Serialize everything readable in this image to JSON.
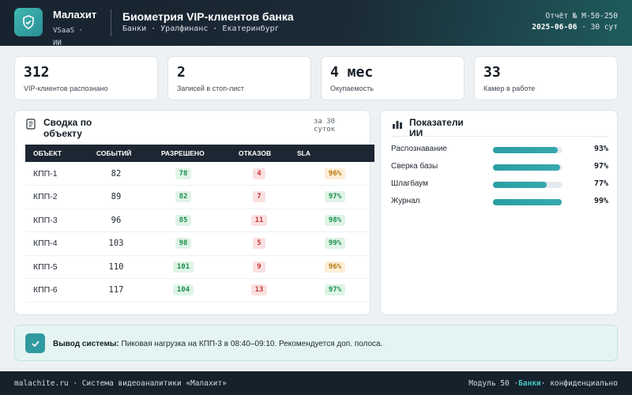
{
  "header": {
    "brand": "Малахит",
    "brand_sub": "VSaaS · ИИ",
    "title": "Биометрия VIP-клиентов банка",
    "subtitle": "Банки · Уралфинанс · Екатеринбург",
    "report_id": "Отчёт № М-50-250",
    "report_date": "2025-06-06",
    "report_period": "· 30 сут"
  },
  "kpis": [
    {
      "value": "312",
      "label": "VIP-клиентов распознано"
    },
    {
      "value": "2",
      "label": "Записей в стоп-лист"
    },
    {
      "value": "4 мес",
      "label": "Окупаемость"
    },
    {
      "value": "33",
      "label": "Камер в работе"
    }
  ],
  "summary": {
    "title": "Сводка по объекту",
    "period_note": "за 30 суток",
    "columns": [
      "ОБЪЕКТ",
      "СОБЫТИЙ",
      "РАЗРЕШЕНО",
      "ОТКАЗОВ",
      "SLA"
    ],
    "rows": [
      {
        "object": "КПП-1",
        "events": "82",
        "allowed": "78",
        "rejected": "4",
        "sla": "96%",
        "sla_level": "warn"
      },
      {
        "object": "КПП-2",
        "events": "89",
        "allowed": "82",
        "rejected": "7",
        "sla": "97%",
        "sla_level": "ok"
      },
      {
        "object": "КПП-3",
        "events": "96",
        "allowed": "85",
        "rejected": "11",
        "sla": "98%",
        "sla_level": "ok"
      },
      {
        "object": "КПП-4",
        "events": "103",
        "allowed": "98",
        "rejected": "5",
        "sla": "99%",
        "sla_level": "ok"
      },
      {
        "object": "КПП-5",
        "events": "110",
        "allowed": "101",
        "rejected": "9",
        "sla": "96%",
        "sla_level": "warn"
      },
      {
        "object": "КПП-6",
        "events": "117",
        "allowed": "104",
        "rejected": "13",
        "sla": "97%",
        "sla_level": "ok"
      }
    ]
  },
  "ai_metrics": {
    "title": "Показатели ИИ",
    "items": [
      {
        "label": "Распознавание",
        "value": "93%",
        "fraction": 0.93
      },
      {
        "label": "Сверка базы",
        "value": "97%",
        "fraction": 0.97
      },
      {
        "label": "Шлагбаум",
        "value": "77%",
        "fraction": 0.77
      },
      {
        "label": "Журнал",
        "value": "99%",
        "fraction": 0.99
      }
    ]
  },
  "system_output": {
    "label": "Вывод системы:",
    "text": "Пиковая нагрузка на КПП-3 в 08:40–09:10. Рекомендуется доп. полоса."
  },
  "footer": {
    "left": "malachite.ru · Система видеоаналитики «Малахит»",
    "right_prefix": "Модуль 50 ·",
    "right_accent": "Банки",
    "right_suffix": "· конфиденциально"
  },
  "colors": {
    "accent": "#2f9aa0",
    "header_bg": "#17232f",
    "ok": "#1a8f4a",
    "bad": "#c43b3b",
    "warn": "#b8760e"
  }
}
